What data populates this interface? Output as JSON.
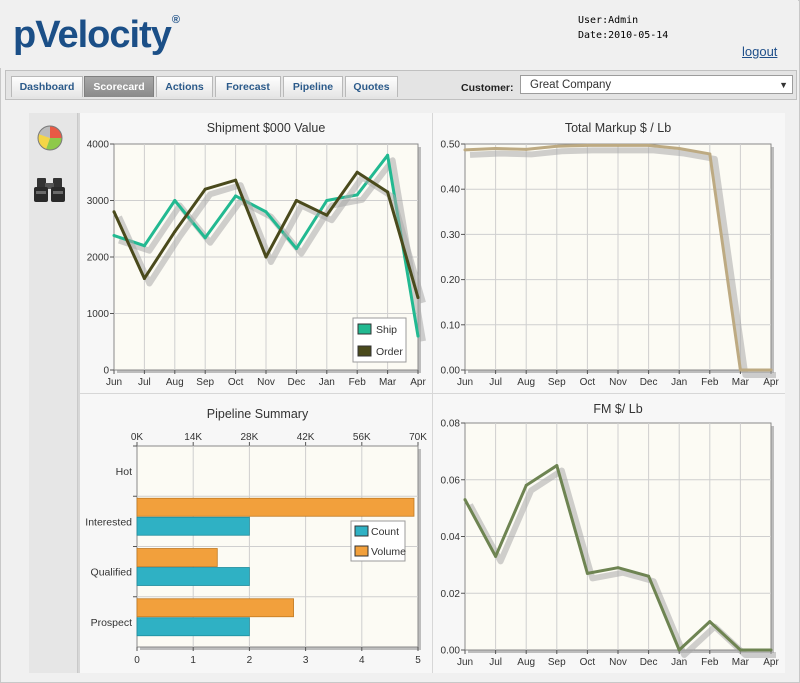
{
  "header": {
    "logo_text": "pVelocity",
    "logo_mark": "®",
    "user_line": "User:Admin",
    "date_line": "Date:2010-05-14",
    "logout_label": "logout"
  },
  "nav": {
    "tabs": [
      {
        "label": "Dashboard",
        "active": false
      },
      {
        "label": "Scorecard",
        "active": true
      },
      {
        "label": "Actions",
        "active": false
      },
      {
        "label": "Forecast",
        "active": false
      },
      {
        "label": "Pipeline",
        "active": false
      },
      {
        "label": "Quotes",
        "active": false
      }
    ],
    "customer_label": "Customer:",
    "customer_value": "Great Company"
  },
  "sidebar": {
    "icons": [
      "pie-chart-icon",
      "binoculars-icon"
    ]
  },
  "colors": {
    "ship": "#22b991",
    "order": "#4a4a1c",
    "markup": "#bdaa82",
    "fm": "#6e8452",
    "count": "#2fb1c4",
    "volume": "#f2a03c",
    "plot_bg": "#fcfbf4"
  },
  "chart_data": [
    {
      "type": "line",
      "title": "Shipment $000 Value",
      "categories": [
        "Jun",
        "Jul",
        "Aug",
        "Sep",
        "Oct",
        "Nov",
        "Dec",
        "Jan",
        "Feb",
        "Mar",
        "Apr"
      ],
      "ylim": [
        0,
        4000
      ],
      "yticks": [
        "0",
        "1000",
        "2000",
        "3000",
        "4000"
      ],
      "legend": "bottom-right",
      "series": [
        {
          "name": "Ship",
          "values": [
            2380,
            2200,
            3000,
            2340,
            3080,
            2800,
            2150,
            3000,
            3100,
            3800,
            600
          ]
        },
        {
          "name": "Order",
          "values": [
            2800,
            1620,
            2450,
            3200,
            3360,
            2000,
            3000,
            2740,
            3500,
            3150,
            1280
          ]
        }
      ]
    },
    {
      "type": "line",
      "title": "Total Markup $ / Lb",
      "categories": [
        "Jun",
        "Jul",
        "Aug",
        "Sep",
        "Oct",
        "Nov",
        "Dec",
        "Jan",
        "Feb",
        "Mar",
        "Apr"
      ],
      "ylim": [
        0,
        0.5
      ],
      "yticks": [
        "0.00",
        "0.10",
        "0.20",
        "0.30",
        "0.40",
        "0.50"
      ],
      "series": [
        {
          "name": "Markup",
          "values": [
            0.487,
            0.49,
            0.488,
            0.495,
            0.497,
            0.497,
            0.497,
            0.49,
            0.478,
            0.0,
            0.0
          ]
        }
      ]
    },
    {
      "type": "bar",
      "orientation": "horizontal",
      "title": "Pipeline Summary",
      "categories": [
        "Hot",
        "Interested",
        "Qualified",
        "Prospect"
      ],
      "top_axis": {
        "max": 70000,
        "ticks": [
          "0K",
          "14K",
          "28K",
          "42K",
          "56K",
          "70K"
        ]
      },
      "bottom_axis": {
        "max": 5,
        "ticks": [
          "0",
          "1",
          "2",
          "3",
          "4",
          "5"
        ]
      },
      "legend": "right",
      "series": [
        {
          "name": "Count",
          "axis": "bottom",
          "values": [
            0,
            2,
            2,
            2
          ]
        },
        {
          "name": "Volume",
          "axis": "top",
          "values": [
            0,
            69000,
            20000,
            39000
          ]
        }
      ]
    },
    {
      "type": "line",
      "title": "FM $/ Lb",
      "categories": [
        "Jun",
        "Jul",
        "Aug",
        "Sep",
        "Oct",
        "Nov",
        "Dec",
        "Jan",
        "Feb",
        "Mar",
        "Apr"
      ],
      "ylim": [
        0,
        0.08
      ],
      "yticks": [
        "0.00",
        "0.02",
        "0.04",
        "0.06",
        "0.08"
      ],
      "series": [
        {
          "name": "FM",
          "values": [
            0.053,
            0.033,
            0.058,
            0.065,
            0.027,
            0.029,
            0.026,
            0.0,
            0.01,
            0.0,
            0.0
          ]
        }
      ]
    }
  ]
}
